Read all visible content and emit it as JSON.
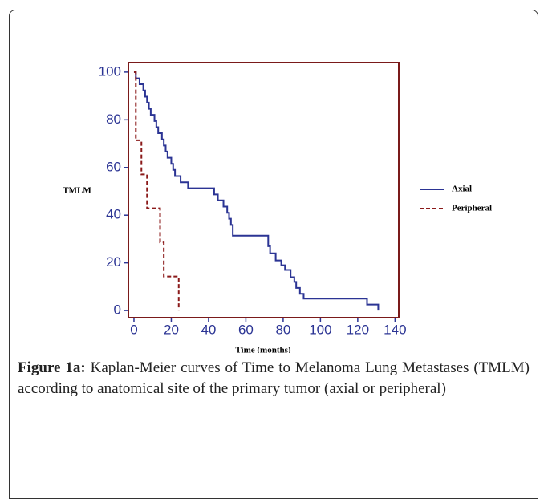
{
  "chart_data": {
    "type": "step",
    "xlabel": "Time (months)",
    "ylabel": "TMLM",
    "xlim": [
      -3,
      142
    ],
    "ylim": [
      -3,
      104
    ],
    "xticks": [
      0,
      20,
      40,
      60,
      80,
      100,
      120,
      140
    ],
    "yticks": [
      0,
      20,
      40,
      60,
      80,
      100
    ],
    "legend": "right",
    "series": [
      {
        "name": "Axial",
        "color": "#2b3494",
        "dash": false,
        "x": [
          0,
          1,
          3,
          5,
          6,
          7,
          8,
          9,
          11,
          12,
          13,
          15,
          16,
          17,
          18,
          20,
          21,
          22,
          25,
          29,
          43,
          45,
          48,
          50,
          51,
          52,
          53,
          72,
          73,
          76,
          79,
          81,
          84,
          86,
          87,
          89,
          91,
          125,
          131
        ],
        "values": [
          100,
          97.4,
          94.9,
          92.3,
          89.7,
          87.2,
          84.6,
          82.1,
          79.5,
          76.9,
          74.4,
          71.8,
          69.2,
          66.7,
          64.1,
          61.5,
          59,
          56.4,
          53.8,
          51.3,
          48.7,
          46.2,
          43.6,
          41,
          38.5,
          35.9,
          31.4,
          27,
          24,
          21,
          19,
          17,
          14,
          12,
          9.5,
          7,
          5,
          2.5,
          0
        ]
      },
      {
        "name": "Peripheral",
        "color": "#8b1a1a",
        "dash": true,
        "x": [
          0,
          1,
          4,
          7,
          14,
          16,
          24
        ],
        "values": [
          100,
          71.4,
          57.1,
          42.9,
          28.6,
          14.3,
          0
        ]
      }
    ]
  },
  "caption": {
    "label": "Figure 1a:",
    "text": "Kaplan-Meier curves of Time to Melanoma Lung Metastases (TMLM) according to anatomical site of the primary tumor (axial or peripheral)"
  }
}
